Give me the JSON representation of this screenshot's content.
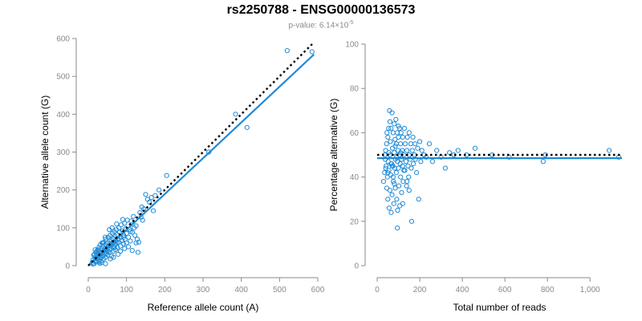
{
  "figure": {
    "title": "rs2250788 - ENSG00000136573",
    "subtitle_prefix": "p-value: 6.14×10",
    "subtitle_exponent": "-5"
  },
  "colors": {
    "points": "#1f8ad6",
    "fit_line": "#1f8ad6",
    "reference_line": "#000000",
    "axis": "#8a8a8a",
    "tick_label": "#8a8a8a"
  },
  "chart_data": [
    {
      "type": "scatter",
      "title": "",
      "xlabel": "Reference allele count (A)",
      "ylabel": "Alternative allele count (G)",
      "xlim": [
        0,
        600
      ],
      "ylim": [
        0,
        600
      ],
      "xticks": [
        0,
        100,
        200,
        300,
        400,
        500,
        600
      ],
      "yticks": [
        0,
        100,
        200,
        300,
        400,
        500,
        600
      ],
      "xtick_labels": [
        "0",
        "100",
        "200",
        "300",
        "400",
        "500",
        "600"
      ],
      "ytick_labels": [
        "0",
        "100",
        "200",
        "300",
        "400",
        "500",
        "600"
      ],
      "grid": false,
      "fit_line": {
        "x": [
          0,
          590
        ],
        "y": [
          0,
          558
        ]
      },
      "reference_line": {
        "x": [
          0,
          590
        ],
        "y": [
          0,
          590
        ]
      },
      "points": [
        [
          10,
          8
        ],
        [
          12,
          15
        ],
        [
          14,
          28
        ],
        [
          15,
          5
        ],
        [
          17,
          20
        ],
        [
          18,
          12
        ],
        [
          20,
          35
        ],
        [
          20,
          25
        ],
        [
          21,
          18
        ],
        [
          22,
          10
        ],
        [
          24,
          30
        ],
        [
          25,
          42
        ],
        [
          26,
          22
        ],
        [
          27,
          15
        ],
        [
          28,
          48
        ],
        [
          30,
          38
        ],
        [
          30,
          28
        ],
        [
          31,
          55
        ],
        [
          32,
          20
        ],
        [
          33,
          12
        ],
        [
          35,
          45
        ],
        [
          35,
          32
        ],
        [
          36,
          60
        ],
        [
          38,
          25
        ],
        [
          39,
          50
        ],
        [
          40,
          38
        ],
        [
          40,
          18
        ],
        [
          41,
          62
        ],
        [
          42,
          30
        ],
        [
          43,
          45
        ],
        [
          45,
          55
        ],
        [
          45,
          22
        ],
        [
          46,
          70
        ],
        [
          47,
          40
        ],
        [
          48,
          32
        ],
        [
          50,
          60
        ],
        [
          50,
          48
        ],
        [
          51,
          28
        ],
        [
          52,
          75
        ],
        [
          53,
          52
        ],
        [
          55,
          42
        ],
        [
          55,
          65
        ],
        [
          56,
          35
        ],
        [
          57,
          80
        ],
        [
          58,
          55
        ],
        [
          60,
          45
        ],
        [
          60,
          68
        ],
        [
          61,
          25
        ],
        [
          62,
          58
        ],
        [
          63,
          85
        ],
        [
          65,
          50
        ],
        [
          65,
          72
        ],
        [
          66,
          38
        ],
        [
          67,
          62
        ],
        [
          68,
          90
        ],
        [
          70,
          55
        ],
        [
          70,
          78
        ],
        [
          71,
          42
        ],
        [
          72,
          65
        ],
        [
          73,
          95
        ],
        [
          75,
          60
        ],
        [
          75,
          82
        ],
        [
          76,
          48
        ],
        [
          78,
          70
        ],
        [
          80,
          100
        ],
        [
          80,
          62
        ],
        [
          82,
          88
        ],
        [
          84,
          52
        ],
        [
          85,
          75
        ],
        [
          86,
          108
        ],
        [
          88,
          66
        ],
        [
          90,
          92
        ],
        [
          92,
          58
        ],
        [
          93,
          80
        ],
        [
          95,
          112
        ],
        [
          96,
          70
        ],
        [
          98,
          98
        ],
        [
          100,
          60
        ],
        [
          100,
          85
        ],
        [
          102,
          120
        ],
        [
          105,
          75
        ],
        [
          108,
          95
        ],
        [
          110,
          65
        ],
        [
          112,
          118
        ],
        [
          115,
          88
        ],
        [
          118,
          130
        ],
        [
          120,
          100
        ],
        [
          122,
          80
        ],
        [
          125,
          105
        ],
        [
          128,
          70
        ],
        [
          130,
          35
        ],
        [
          132,
          62
        ],
        [
          135,
          140
        ],
        [
          138,
          128
        ],
        [
          140,
          155
        ],
        [
          142,
          120
        ],
        [
          145,
          150
        ],
        [
          150,
          188
        ],
        [
          155,
          175
        ],
        [
          160,
          168
        ],
        [
          165,
          180
        ],
        [
          170,
          145
        ],
        [
          175,
          185
        ],
        [
          185,
          200
        ],
        [
          205,
          238
        ],
        [
          315,
          300
        ],
        [
          385,
          400
        ],
        [
          415,
          365
        ],
        [
          520,
          568
        ],
        [
          585,
          565
        ],
        [
          18,
          42
        ],
        [
          22,
          38
        ],
        [
          28,
          10
        ],
        [
          35,
          8
        ],
        [
          44,
          75
        ],
        [
          55,
          95
        ],
        [
          62,
          100
        ],
        [
          74,
          110
        ],
        [
          90,
          122
        ],
        [
          105,
          50
        ],
        [
          115,
          40
        ],
        [
          45,
          5
        ],
        [
          58,
          18
        ],
        [
          66,
          22
        ],
        [
          84,
          38
        ],
        [
          95,
          45
        ],
        [
          110,
          90
        ],
        [
          125,
          60
        ],
        [
          68,
          48
        ],
        [
          52,
          36
        ],
        [
          38,
          60
        ],
        [
          26,
          40
        ],
        [
          30,
          6
        ],
        [
          16,
          30
        ],
        [
          12,
          4
        ],
        [
          78,
          30
        ],
        [
          92,
          75
        ]
      ]
    },
    {
      "type": "scatter",
      "title": "",
      "xlabel": "Total number of reads",
      "ylabel": "Percentage alternative (G)",
      "xlim": [
        0,
        1150
      ],
      "ylim": [
        0,
        100
      ],
      "xticks": [
        0,
        200,
        400,
        600,
        800,
        1000
      ],
      "yticks": [
        0,
        20,
        40,
        60,
        80,
        100
      ],
      "xtick_labels": [
        "0",
        "200",
        "400",
        "600",
        "800",
        "1,000"
      ],
      "ytick_labels": [
        "0",
        "20",
        "40",
        "60",
        "80",
        "100"
      ],
      "grid": false,
      "fit_line": {
        "x": [
          0,
          1150
        ],
        "y": [
          48.5,
          48.5
        ]
      },
      "reference_line": {
        "x": [
          0,
          1150
        ],
        "y": [
          50,
          50
        ]
      },
      "points": [
        [
          30,
          38
        ],
        [
          35,
          42
        ],
        [
          38,
          48
        ],
        [
          40,
          52
        ],
        [
          42,
          45
        ],
        [
          44,
          55
        ],
        [
          45,
          35
        ],
        [
          46,
          60
        ],
        [
          48,
          40
        ],
        [
          50,
          58
        ],
        [
          50,
          30
        ],
        [
          52,
          47
        ],
        [
          54,
          62
        ],
        [
          55,
          43
        ],
        [
          56,
          26
        ],
        [
          58,
          70
        ],
        [
          60,
          50
        ],
        [
          60,
          34
        ],
        [
          62,
          56
        ],
        [
          64,
          41
        ],
        [
          65,
          62
        ],
        [
          66,
          24
        ],
        [
          68,
          46
        ],
        [
          70,
          69
        ],
        [
          70,
          32
        ],
        [
          72,
          53
        ],
        [
          74,
          45
        ],
        [
          75,
          60
        ],
        [
          76,
          38
        ],
        [
          78,
          28
        ],
        [
          80,
          51
        ],
        [
          80,
          64
        ],
        [
          82,
          44
        ],
        [
          84,
          57
        ],
        [
          85,
          35
        ],
        [
          86,
          48
        ],
        [
          88,
          66
        ],
        [
          90,
          42
        ],
        [
          90,
          55
        ],
        [
          92,
          30
        ],
        [
          94,
          60
        ],
        [
          95,
          47
        ],
        [
          96,
          25
        ],
        [
          98,
          52
        ],
        [
          100,
          44
        ],
        [
          100,
          58
        ],
        [
          102,
          36
        ],
        [
          104,
          50
        ],
        [
          105,
          62
        ],
        [
          106,
          27
        ],
        [
          108,
          46
        ],
        [
          110,
          55
        ],
        [
          110,
          40
        ],
        [
          112,
          60
        ],
        [
          114,
          48
        ],
        [
          115,
          33
        ],
        [
          118,
          52
        ],
        [
          120,
          45
        ],
        [
          120,
          58
        ],
        [
          122,
          38
        ],
        [
          125,
          50
        ],
        [
          128,
          62
        ],
        [
          130,
          43
        ],
        [
          132,
          55
        ],
        [
          135,
          47
        ],
        [
          138,
          36
        ],
        [
          140,
          52
        ],
        [
          142,
          58
        ],
        [
          145,
          45
        ],
        [
          148,
          40
        ],
        [
          150,
          50
        ],
        [
          150,
          60
        ],
        [
          155,
          48
        ],
        [
          158,
          55
        ],
        [
          160,
          44
        ],
        [
          162,
          20
        ],
        [
          165,
          52
        ],
        [
          168,
          58
        ],
        [
          170,
          46
        ],
        [
          175,
          50
        ],
        [
          178,
          55
        ],
        [
          180,
          48
        ],
        [
          185,
          42
        ],
        [
          190,
          53
        ],
        [
          195,
          30
        ],
        [
          200,
          56
        ],
        [
          205,
          47
        ],
        [
          210,
          52
        ],
        [
          220,
          50
        ],
        [
          230,
          49
        ],
        [
          245,
          55
        ],
        [
          260,
          47
        ],
        [
          280,
          52
        ],
        [
          300,
          49
        ],
        [
          320,
          44
        ],
        [
          340,
          51
        ],
        [
          360,
          50
        ],
        [
          380,
          52
        ],
        [
          420,
          50
        ],
        [
          460,
          53
        ],
        [
          540,
          50
        ],
        [
          620,
          49
        ],
        [
          780,
          47
        ],
        [
          790,
          50
        ],
        [
          1090,
          52
        ],
        [
          1135,
          49
        ],
        [
          95,
          17
        ],
        [
          60,
          65
        ],
        [
          120,
          28
        ],
        [
          75,
          40
        ],
        [
          100,
          63
        ],
        [
          85,
          54
        ],
        [
          140,
          38
        ],
        [
          65,
          46
        ],
        [
          50,
          42
        ],
        [
          40,
          44
        ],
        [
          36,
          50
        ],
        [
          55,
          51
        ],
        [
          70,
          45
        ],
        [
          90,
          49
        ],
        [
          110,
          51
        ],
        [
          125,
          43
        ],
        [
          80,
          37
        ],
        [
          150,
          34
        ]
      ]
    }
  ]
}
